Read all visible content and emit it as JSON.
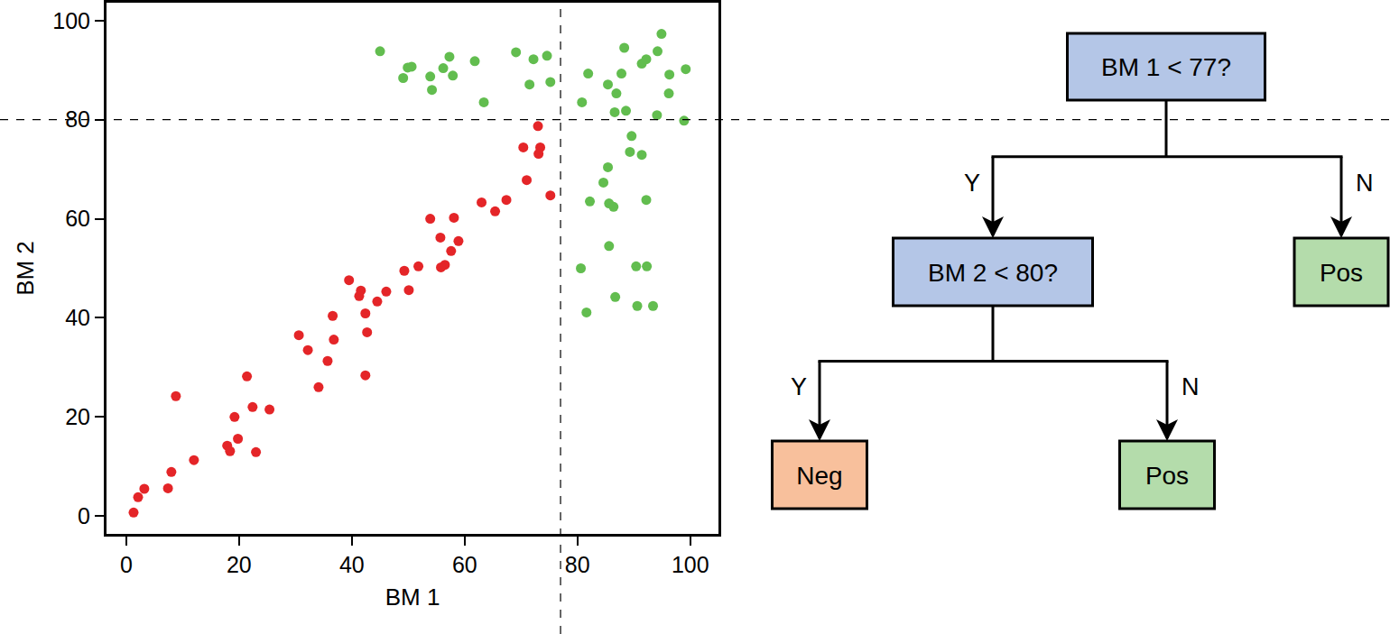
{
  "chart_data": {
    "type": "scatter",
    "xlabel": "BM 1",
    "ylabel": "BM 2",
    "xlim": [
      -3.5,
      105
    ],
    "ylim": [
      -3.6,
      103.6
    ],
    "xticks": [
      0,
      20,
      40,
      60,
      80,
      100
    ],
    "yticks": [
      0,
      20,
      40,
      60,
      80,
      100
    ],
    "grid": false,
    "marker": "circle",
    "series": [
      {
        "color": "#e42528",
        "x": [
          1.3,
          2.1,
          3.2,
          7.4,
          8,
          8.8,
          12,
          17.9,
          18.4,
          19.2,
          19.8,
          21.4,
          22.4,
          23,
          25.4,
          30.6,
          32.2,
          34.1,
          35.7,
          36.6,
          36.8,
          39.5,
          41.3,
          41.6,
          42.4,
          42.7,
          42.4,
          44.5,
          46.1,
          49.3,
          50.1,
          51.8,
          53.9,
          55.7,
          56.5,
          55.8,
          57.6,
          58.1,
          58.9,
          63,
          65.4,
          67.4,
          70.4,
          71,
          73,
          73.4,
          73.1,
          75.2
        ],
        "y": [
          0.7,
          3.8,
          5.5,
          5.6,
          8.9,
          24.2,
          11.3,
          14.2,
          13.1,
          20,
          15.6,
          28.2,
          22,
          12.9,
          21.5,
          36.5,
          33.5,
          26,
          31.3,
          40.4,
          35.6,
          47.6,
          44.4,
          45.5,
          40.9,
          37.1,
          28.4,
          43.3,
          45.3,
          49.5,
          45.6,
          50.4,
          60,
          56.2,
          50.7,
          50.2,
          53.5,
          60.2,
          55.5,
          63.3,
          61.5,
          63.8,
          74.4,
          67.8,
          78.7,
          74.4,
          73.1,
          64.7
        ]
      },
      {
        "color": "#62bd4f",
        "x": [
          45,
          49.1,
          49.9,
          50.6,
          53.9,
          54.2,
          56.2,
          57.3,
          57.9,
          61.8,
          63.4,
          69.1,
          71.5,
          72.2,
          74.6,
          75.2,
          80.8,
          81.9,
          85.4,
          86.9,
          87.8,
          88.3,
          86.6,
          88.6,
          91.4,
          92.2,
          94.2,
          94.9,
          96.3,
          96.2,
          99.2,
          98.9,
          94.1,
          89.6,
          89.3,
          91.4,
          85.4,
          84.6,
          82.2,
          85.6,
          86.4,
          92.2,
          85.6,
          80.6,
          90.4,
          92.3,
          86.7,
          81.6,
          90.6,
          93.4
        ],
        "y": [
          93.8,
          88.4,
          90.5,
          90.7,
          88.7,
          86,
          90.4,
          92.7,
          88.9,
          91.8,
          83.5,
          93.6,
          87.1,
          92.2,
          92.9,
          87.6,
          83.5,
          89.3,
          87.1,
          85.3,
          89.3,
          94.5,
          81.5,
          81.8,
          91.3,
          92.2,
          93.8,
          97.3,
          89.1,
          85.3,
          90.2,
          79.8,
          80.9,
          76.7,
          73.5,
          72.9,
          70.4,
          67.3,
          63.5,
          63.1,
          62.4,
          63.8,
          54.5,
          50,
          50.4,
          50.4,
          44.2,
          41.1,
          42.4,
          42.4
        ]
      }
    ],
    "reference_lines": [
      {
        "axis": "x",
        "value": 77,
        "line_style": "dashed"
      },
      {
        "axis": "y",
        "value": 80,
        "line_style": "dashed"
      }
    ]
  },
  "decision_tree": {
    "branch_labels": {
      "yes": "Y",
      "no": "N"
    },
    "root": {
      "question": "BM 1 < 77?",
      "color": "#b4c6e7",
      "yes": {
        "question": "BM 2 < 80?",
        "color": "#b4c6e7",
        "yes": {
          "leaf": "Neg",
          "color": "#f8c09c"
        },
        "no": {
          "leaf": "Pos",
          "color": "#b4dcab"
        }
      },
      "no": {
        "leaf": "Pos",
        "color": "#b4dcab"
      }
    }
  }
}
